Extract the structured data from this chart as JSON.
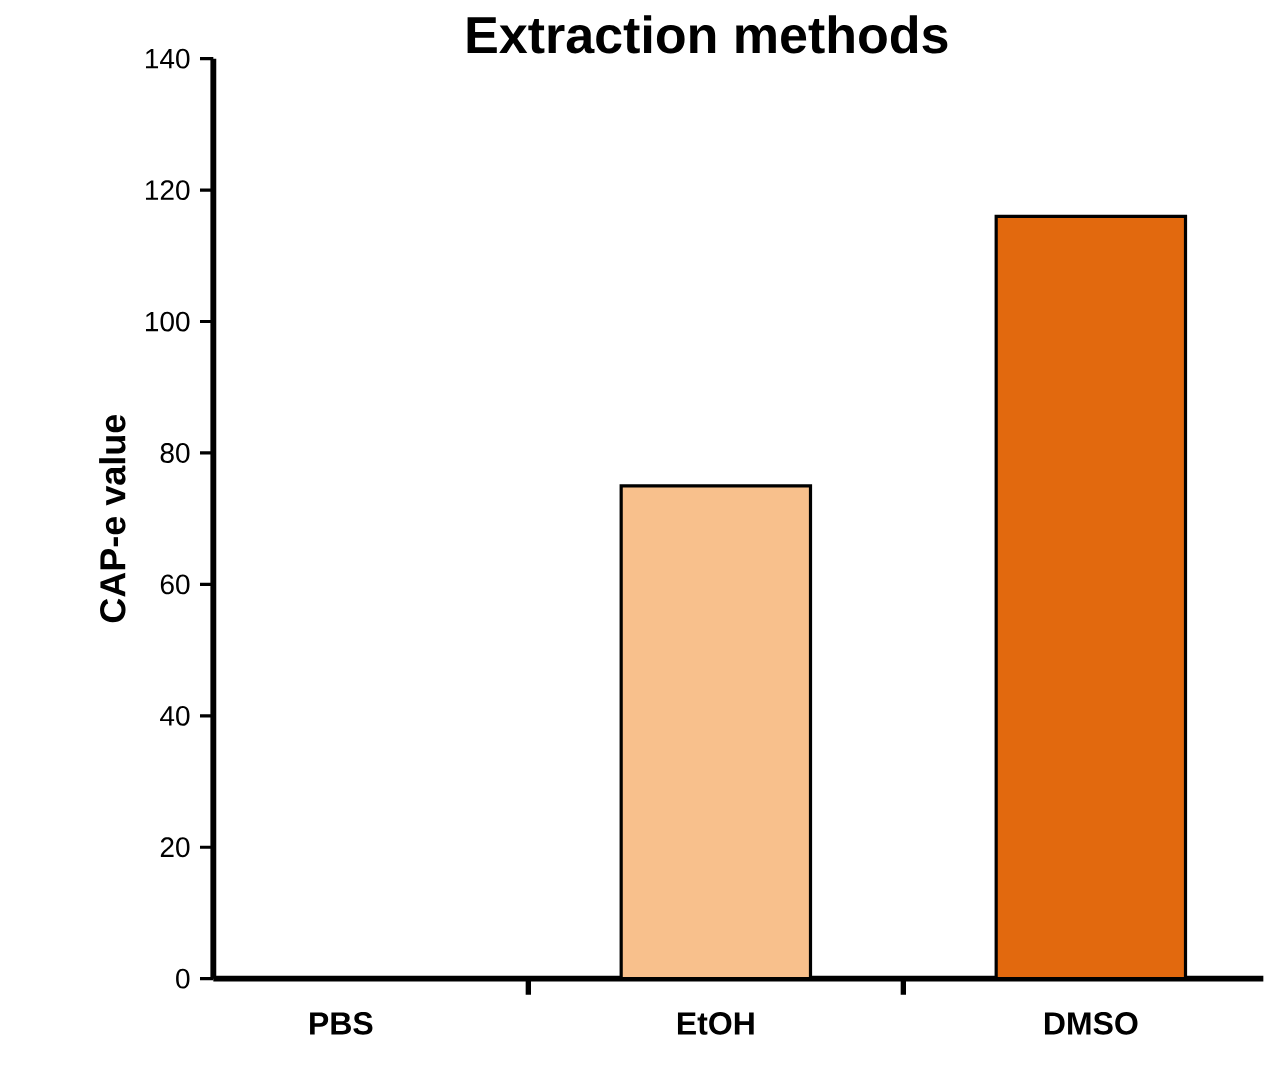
{
  "chart_data": {
    "type": "bar",
    "title": "Extraction methods",
    "ylabel": "CAP-e value",
    "categories": [
      "PBS",
      "EtOH",
      "DMSO"
    ],
    "values": [
      0,
      75,
      116
    ],
    "colors": [
      "#f4a460",
      "#f8c08c",
      "#e2690e"
    ],
    "ylim": [
      0,
      140
    ],
    "yticks": [
      0,
      20,
      40,
      60,
      80,
      100,
      120,
      140
    ]
  }
}
